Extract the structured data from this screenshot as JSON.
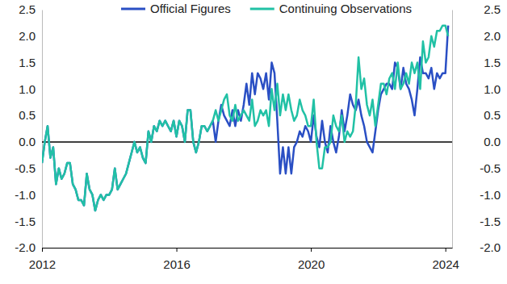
{
  "chart_data": {
    "type": "line",
    "x": [
      2012,
      2012.083,
      2012.167,
      2012.25,
      2012.333,
      2012.417,
      2012.5,
      2012.583,
      2012.667,
      2012.75,
      2012.833,
      2012.917,
      2013,
      2013.083,
      2013.167,
      2013.25,
      2013.333,
      2013.417,
      2013.5,
      2013.583,
      2013.667,
      2013.75,
      2013.833,
      2013.917,
      2014,
      2014.083,
      2014.167,
      2014.25,
      2014.333,
      2014.417,
      2014.5,
      2014.583,
      2014.667,
      2014.75,
      2014.833,
      2014.917,
      2015,
      2015.083,
      2015.167,
      2015.25,
      2015.333,
      2015.417,
      2015.5,
      2015.583,
      2015.667,
      2015.75,
      2015.833,
      2015.917,
      2016,
      2016.083,
      2016.167,
      2016.25,
      2016.333,
      2016.417,
      2016.5,
      2016.583,
      2016.667,
      2016.75,
      2016.833,
      2016.917,
      2017,
      2017.083,
      2017.167,
      2017.25,
      2017.333,
      2017.417,
      2017.5,
      2017.583,
      2017.667,
      2017.75,
      2017.833,
      2017.917,
      2018,
      2018.083,
      2018.167,
      2018.25,
      2018.333,
      2018.417,
      2018.5,
      2018.583,
      2018.667,
      2018.75,
      2018.833,
      2018.917,
      2019,
      2019.083,
      2019.167,
      2019.25,
      2019.333,
      2019.417,
      2019.5,
      2019.583,
      2019.667,
      2019.75,
      2019.833,
      2019.917,
      2020,
      2020.083,
      2020.167,
      2020.25,
      2020.333,
      2020.417,
      2020.5,
      2020.583,
      2020.667,
      2020.75,
      2020.833,
      2020.917,
      2021,
      2021.083,
      2021.167,
      2021.25,
      2021.333,
      2021.417,
      2021.5,
      2021.583,
      2021.667,
      2021.75,
      2021.833,
      2021.917,
      2022,
      2022.083,
      2022.167,
      2022.25,
      2022.333,
      2022.417,
      2022.5,
      2022.583,
      2022.667,
      2022.75,
      2022.833,
      2022.917,
      2023,
      2023.083,
      2023.167,
      2023.25,
      2023.333,
      2023.417,
      2023.5,
      2023.583,
      2023.667,
      2023.75,
      2023.833,
      2023.917,
      2024,
      2024.083
    ],
    "series": [
      {
        "name": "Official Figures",
        "color": "#2a4fc4",
        "values": [
          -0.4,
          0.0,
          0.3,
          -0.3,
          -0.1,
          -0.8,
          -0.5,
          -0.7,
          -0.6,
          -0.4,
          -0.4,
          -0.8,
          -0.9,
          -1.1,
          -1.1,
          -1.2,
          -0.6,
          -0.9,
          -1.0,
          -1.3,
          -1.1,
          -1.0,
          -1.1,
          -1.0,
          -1.0,
          -0.9,
          -0.5,
          -0.9,
          -0.8,
          -0.7,
          -0.6,
          -0.4,
          -0.2,
          0.0,
          -0.2,
          -0.1,
          -0.3,
          -0.4,
          0.2,
          0.0,
          0.3,
          0.2,
          0.4,
          0.3,
          0.4,
          0.3,
          0.2,
          0.4,
          0.1,
          0.4,
          0.3,
          0.0,
          0.6,
          0.6,
          0.0,
          -0.2,
          0.0,
          0.3,
          0.3,
          0.2,
          0.3,
          0.4,
          0.0,
          0.4,
          0.7,
          0.5,
          0.4,
          0.3,
          0.6,
          0.3,
          0.6,
          0.4,
          0.7,
          1.1,
          0.7,
          1.3,
          0.9,
          1.3,
          1.2,
          1.0,
          1.3,
          0.8,
          1.5,
          1.3,
          0.4,
          -0.6,
          -0.1,
          -0.6,
          -0.1,
          -0.6,
          -0.1,
          0.0,
          0.2,
          0.1,
          0.3,
          0.2,
          0.0,
          0.5,
          0.1,
          -0.1,
          0.4,
          0.0,
          -0.2,
          0.3,
          0.0,
          -0.2,
          0.1,
          0.6,
          0.2,
          0.5,
          0.9,
          0.7,
          0.6,
          0.8,
          0.5,
          0.3,
          0.0,
          -0.1,
          -0.2,
          0.2,
          0.6,
          0.9,
          1.0,
          1.1,
          1.1,
          1.0,
          1.5,
          1.4,
          1.0,
          1.4,
          1.1,
          1.0,
          0.8,
          0.5,
          1.0,
          1.6,
          1.3,
          1.3,
          1.2,
          1.4,
          1.0,
          1.3,
          1.2,
          1.3,
          1.3,
          2.2
        ]
      },
      {
        "name": "Continuing Observations",
        "color": "#21c1a5",
        "values": [
          -0.4,
          0.0,
          0.3,
          -0.3,
          -0.1,
          -0.8,
          -0.5,
          -0.7,
          -0.6,
          -0.4,
          -0.4,
          -0.8,
          -0.9,
          -1.1,
          -1.1,
          -1.2,
          -0.6,
          -0.9,
          -1.0,
          -1.3,
          -1.1,
          -1.0,
          -1.1,
          -1.0,
          -1.0,
          -0.9,
          -0.5,
          -0.9,
          -0.8,
          -0.7,
          -0.6,
          -0.4,
          -0.2,
          0.0,
          -0.2,
          -0.1,
          -0.3,
          -0.4,
          0.2,
          0.0,
          0.3,
          0.2,
          0.4,
          0.3,
          0.4,
          0.3,
          0.2,
          0.4,
          0.1,
          0.4,
          0.3,
          0.0,
          0.6,
          0.6,
          0.0,
          -0.2,
          0.0,
          0.3,
          0.3,
          0.2,
          0.3,
          0.4,
          0.6,
          0.4,
          0.6,
          0.8,
          0.9,
          0.5,
          0.4,
          0.7,
          0.4,
          0.5,
          0.6,
          0.5,
          0.4,
          0.8,
          0.3,
          0.4,
          0.6,
          0.5,
          0.6,
          0.3,
          1.0,
          0.6,
          1.1,
          0.5,
          0.9,
          0.6,
          0.9,
          0.6,
          0.4,
          0.5,
          0.8,
          0.6,
          0.5,
          0.3,
          0.3,
          0.8,
          0.0,
          -0.5,
          -0.5,
          -0.1,
          -0.1,
          0.0,
          0.5,
          0.3,
          0.2,
          0.5,
          0.0,
          0.2,
          0.1,
          0.2,
          0.7,
          1.6,
          1.0,
          1.2,
          0.7,
          0.5,
          0.8,
          0.3,
          0.7,
          1.1,
          1.1,
          0.9,
          1.2,
          1.3,
          1.0,
          1.5,
          1.0,
          1.1,
          1.3,
          1.1,
          1.5,
          1.3,
          1.5,
          1.0,
          1.9,
          1.5,
          1.6,
          2.0,
          1.8,
          2.1,
          2.1,
          2.2,
          2.2,
          2.0
        ]
      }
    ],
    "xlim": [
      2012,
      2024.2
    ],
    "xticks": [
      2012,
      2016,
      2020,
      2024
    ],
    "ylim": [
      -2,
      2.5
    ],
    "yticks": [
      {
        "value": -2,
        "label": "-2.0"
      },
      -1.5,
      {
        "value": -1,
        "label": "-1.0"
      },
      -0.5,
      {
        "value": 0,
        "label": "0.0"
      },
      0.5,
      {
        "value": 1,
        "label": "1.0"
      },
      1.5,
      {
        "value": 2,
        "label": "2.0"
      },
      2.5
    ],
    "y2lim": [
      -2,
      2.5
    ],
    "y2ticks": [
      {
        "value": -2,
        "label": "-2.0"
      },
      -1.5,
      {
        "value": -1,
        "label": "-1.0"
      },
      -0.5,
      {
        "value": 0,
        "label": "0.0"
      },
      0.5,
      {
        "value": 1,
        "label": "1.0"
      },
      1.5,
      {
        "value": 2,
        "label": "2.0"
      },
      2.5
    ],
    "grid": false,
    "legend": "top"
  }
}
